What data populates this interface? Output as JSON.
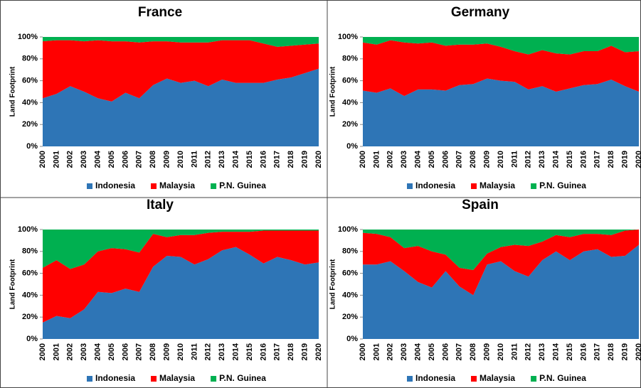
{
  "chart_data": [
    {
      "type": "area",
      "stacked": true,
      "title": "France",
      "ylabel": "Land Footprint",
      "categories": [
        "2000",
        "2001",
        "2002",
        "2003",
        "2004",
        "2005",
        "2006",
        "2007",
        "2008",
        "2009",
        "2010",
        "2011",
        "2012",
        "2013",
        "2014",
        "2015",
        "2016",
        "2017",
        "2018",
        "2019",
        "2020"
      ],
      "series": [
        {
          "name": "Indonesia",
          "color": "#2e75b6",
          "values": [
            44,
            48,
            55,
            50,
            44,
            41,
            49,
            44,
            56,
            62,
            58,
            60,
            55,
            61,
            58,
            58,
            58,
            61,
            63,
            67,
            71
          ]
        },
        {
          "name": "Malaysia",
          "color": "#ff0000",
          "values": [
            52,
            49,
            42,
            46,
            53,
            55,
            47,
            51,
            40,
            34,
            37,
            35,
            40,
            36,
            39,
            39,
            36,
            30,
            29,
            26,
            23
          ]
        },
        {
          "name": "P.N. Guinea",
          "color": "#00b050",
          "values": [
            4,
            3,
            3,
            4,
            3,
            4,
            4,
            5,
            4,
            4,
            5,
            5,
            5,
            3,
            3,
            3,
            6,
            9,
            8,
            7,
            6
          ]
        }
      ],
      "ylim": [
        0,
        100
      ],
      "yticks": [
        {
          "value": 0,
          "label": "0%"
        },
        {
          "value": 20,
          "label": "20%"
        },
        {
          "value": 40,
          "label": "40%"
        },
        {
          "value": 60,
          "label": "60%"
        },
        {
          "value": 80,
          "label": "80%"
        },
        {
          "value": 100,
          "label": "100%"
        }
      ]
    },
    {
      "type": "area",
      "stacked": true,
      "title": "Germany",
      "ylabel": "Land Footprint",
      "categories": [
        "2000",
        "2001",
        "2002",
        "2003",
        "2004",
        "2005",
        "2006",
        "2007",
        "2008",
        "2009",
        "2010",
        "2011",
        "2012",
        "2013",
        "2014",
        "2015",
        "2016",
        "2017",
        "2018",
        "2019",
        "2020"
      ],
      "series": [
        {
          "name": "Indonesia",
          "color": "#2e75b6",
          "values": [
            51,
            49,
            53,
            46,
            52,
            52,
            51,
            56,
            57,
            62,
            60,
            59,
            52,
            55,
            50,
            53,
            56,
            57,
            61,
            55,
            50
          ]
        },
        {
          "name": "Malaysia",
          "color": "#ff0000",
          "values": [
            44,
            44,
            44,
            49,
            42,
            43,
            41,
            37,
            36,
            32,
            31,
            28,
            32,
            33,
            35,
            31,
            31,
            30,
            31,
            31,
            37
          ]
        },
        {
          "name": "P.N. Guinea",
          "color": "#00b050",
          "values": [
            5,
            7,
            3,
            5,
            6,
            5,
            8,
            7,
            7,
            6,
            9,
            13,
            16,
            12,
            15,
            16,
            13,
            13,
            8,
            14,
            13
          ]
        }
      ],
      "ylim": [
        0,
        100
      ],
      "yticks": [
        {
          "value": 0,
          "label": "0%"
        },
        {
          "value": 20,
          "label": "20%"
        },
        {
          "value": 40,
          "label": "40%"
        },
        {
          "value": 60,
          "label": "60%"
        },
        {
          "value": 80,
          "label": "80%"
        },
        {
          "value": 100,
          "label": "100%"
        }
      ]
    },
    {
      "type": "area",
      "stacked": true,
      "title": "Italy",
      "ylabel": "Land Footprint",
      "categories": [
        "2000",
        "2001",
        "2002",
        "2003",
        "2004",
        "2005",
        "2006",
        "2007",
        "2008",
        "2009",
        "2010",
        "2011",
        "2012",
        "2013",
        "2014",
        "2015",
        "2016",
        "2017",
        "2018",
        "2019",
        "2020"
      ],
      "series": [
        {
          "name": "Indonesia",
          "color": "#2e75b6",
          "values": [
            15,
            21,
            19,
            27,
            43,
            42,
            46,
            43,
            66,
            76,
            75,
            68,
            73,
            81,
            84,
            77,
            69,
            75,
            72,
            68,
            70
          ]
        },
        {
          "name": "Malaysia",
          "color": "#ff0000",
          "values": [
            50,
            51,
            45,
            41,
            37,
            41,
            36,
            36,
            30,
            17,
            20,
            27,
            24,
            17,
            14,
            21,
            30,
            24,
            27,
            31,
            29
          ]
        },
        {
          "name": "P.N. Guinea",
          "color": "#00b050",
          "values": [
            35,
            28,
            36,
            32,
            20,
            17,
            18,
            21,
            4,
            7,
            5,
            5,
            3,
            2,
            2,
            2,
            1,
            1,
            1,
            1,
            1
          ]
        }
      ],
      "ylim": [
        0,
        100
      ],
      "yticks": [
        {
          "value": 0,
          "label": "0%"
        },
        {
          "value": 20,
          "label": "20%"
        },
        {
          "value": 40,
          "label": "40%"
        },
        {
          "value": 60,
          "label": "60%"
        },
        {
          "value": 80,
          "label": "80%"
        },
        {
          "value": 100,
          "label": "100%"
        }
      ]
    },
    {
      "type": "area",
      "stacked": true,
      "title": "Spain",
      "ylabel": "Land Footprint",
      "categories": [
        "2000",
        "2001",
        "2002",
        "2003",
        "2004",
        "2005",
        "2006",
        "2007",
        "2008",
        "2009",
        "2010",
        "2011",
        "2012",
        "2013",
        "2014",
        "2015",
        "2016",
        "2017",
        "2018",
        "2019",
        "2020"
      ],
      "series": [
        {
          "name": "Indonesia",
          "color": "#2e75b6",
          "values": [
            68,
            68,
            71,
            62,
            52,
            47,
            62,
            48,
            40,
            68,
            71,
            62,
            57,
            72,
            80,
            72,
            80,
            82,
            75,
            76,
            86
          ]
        },
        {
          "name": "Malaysia",
          "color": "#ff0000",
          "values": [
            29,
            28,
            22,
            21,
            33,
            33,
            15,
            17,
            23,
            10,
            13,
            24,
            28,
            17,
            15,
            21,
            16,
            14,
            20,
            23,
            14
          ]
        },
        {
          "name": "P.N. Guinea",
          "color": "#00b050",
          "values": [
            3,
            4,
            7,
            17,
            15,
            20,
            23,
            35,
            37,
            22,
            16,
            14,
            15,
            11,
            5,
            7,
            4,
            4,
            5,
            1,
            0
          ]
        }
      ],
      "ylim": [
        0,
        100
      ],
      "yticks": [
        {
          "value": 0,
          "label": "0%"
        },
        {
          "value": 20,
          "label": "20%"
        },
        {
          "value": 40,
          "label": "40%"
        },
        {
          "value": 60,
          "label": "60%"
        },
        {
          "value": 80,
          "label": "80%"
        },
        {
          "value": 100,
          "label": "100%"
        }
      ]
    }
  ]
}
